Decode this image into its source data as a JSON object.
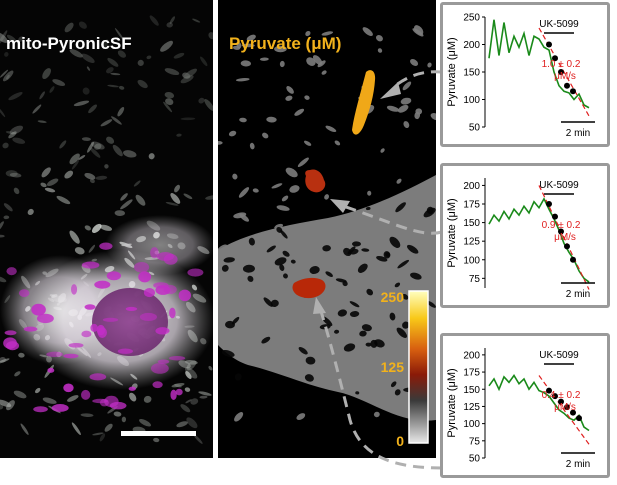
{
  "panels": {
    "fluorescence": {
      "title": "mito-PyronicSF"
    },
    "pyruvate": {
      "title": "Pyruvate (μM)",
      "colorbar": {
        "labels": [
          "250",
          "125",
          "0"
        ],
        "label_color": "#f2b21c"
      }
    }
  },
  "colors": {
    "trace": "#1a8a1a",
    "fit": "#e02020",
    "points": "#000000",
    "annotation": "#e02020",
    "arrow": "#b0b0b0"
  },
  "chart_data": [
    {
      "type": "line",
      "ylabel": "Pyruvate (μM)",
      "yticks": [
        "250",
        "200",
        "150",
        "100",
        "50"
      ],
      "ylim": [
        50,
        250
      ],
      "treatment": "UK-5099",
      "scale_label": "2 min",
      "rate": "1.0 ± 0.2",
      "rate_unit": "μM/s",
      "series": [
        {
          "values": [
            175,
            245,
            180,
            240,
            185,
            215,
            195,
            220,
            180,
            215,
            210,
            195,
            190,
            150,
            125,
            115,
            112,
            100,
            110,
            90,
            85
          ]
        }
      ],
      "points": [
        200,
        175,
        150,
        125,
        115
      ],
      "fit": [
        230,
        70
      ]
    },
    {
      "type": "line",
      "ylabel": "Pyruvate (μM)",
      "yticks": [
        "200",
        "175",
        "150",
        "125",
        "100",
        "75"
      ],
      "ylim": [
        62,
        210
      ],
      "treatment": "UK-5099",
      "scale_label": "2 min",
      "rate": "0.9 ± 0.2",
      "rate_unit": "μM/s",
      "series": [
        {
          "values": [
            148,
            160,
            152,
            165,
            155,
            168,
            160,
            172,
            163,
            178,
            170,
            182,
            168,
            155,
            140,
            122,
            110,
            100,
            85,
            75,
            70
          ]
        }
      ],
      "points": [
        175,
        158,
        138,
        118,
        100
      ],
      "fit": [
        200,
        60
      ]
    },
    {
      "type": "line",
      "ylabel": "Pyruvate (μM)",
      "yticks": [
        "200",
        "175",
        "150",
        "125",
        "100",
        "75",
        "50"
      ],
      "ylim": [
        50,
        210
      ],
      "treatment": "UK-5099",
      "scale_label": "2 min",
      "rate": "0.4 ± 0.2",
      "rate_unit": "μM/s",
      "series": [
        {
          "values": [
            155,
            165,
            150,
            168,
            160,
            170,
            158,
            165,
            150,
            160,
            148,
            145,
            140,
            130,
            120,
            115,
            108,
            105,
            112,
            95,
            90
          ]
        }
      ],
      "points": [
        148,
        140,
        132,
        124,
        116,
        108
      ],
      "fit": [
        170,
        70
      ]
    }
  ]
}
